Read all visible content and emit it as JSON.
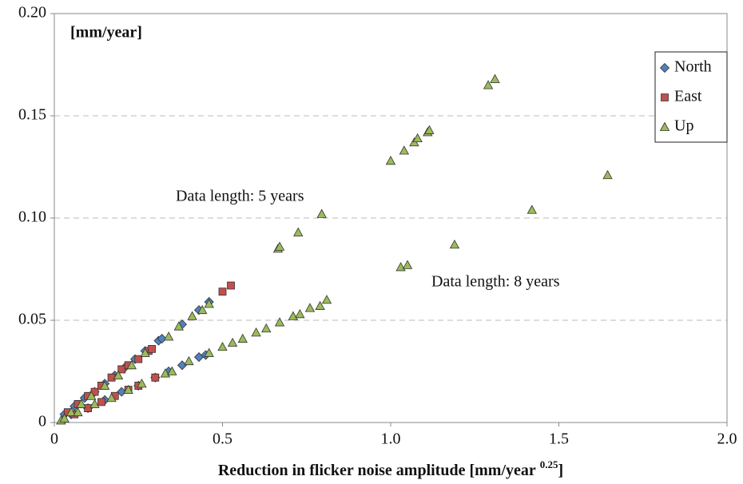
{
  "chart_data": {
    "type": "scatter",
    "y_unit_label": "[mm/year]",
    "x_label": "Reduction in flicker noise amplitude [mm/year",
    "x_label_superscript": "0.25",
    "x_label_end": "]",
    "annotations": [
      "Data length: 5 years",
      "Data length: 8 years"
    ],
    "xlim": [
      0,
      2
    ],
    "ylim": [
      0,
      0.2
    ],
    "xticks": [
      0,
      0.5,
      {
        "value": 1,
        "label": "1.0"
      },
      1.5,
      {
        "value": 2,
        "label": "2.0"
      }
    ],
    "yticks": [
      0,
      0.05,
      {
        "value": 0.1,
        "label": "0.10"
      },
      0.15,
      {
        "value": 0.2,
        "label": "0.20"
      }
    ],
    "grid": true,
    "legend": "top-right",
    "series": [
      {
        "name": "North",
        "color": "#4f81bd",
        "marker": "diamond",
        "x": [
          0.03,
          0.06,
          0.09,
          0.12,
          0.15,
          0.18,
          0.21,
          0.24,
          0.27,
          0.31,
          0.32,
          0.38,
          0.43,
          0.46,
          0.05,
          0.1,
          0.15,
          0.2,
          0.25,
          0.3,
          0.34,
          0.38,
          0.43,
          0.45
        ],
        "values": [
          0.004,
          0.008,
          0.012,
          0.015,
          0.019,
          0.023,
          0.027,
          0.031,
          0.035,
          0.04,
          0.041,
          0.048,
          0.055,
          0.059,
          0.004,
          0.007,
          0.011,
          0.015,
          0.018,
          0.022,
          0.025,
          0.028,
          0.032,
          0.033
        ]
      },
      {
        "name": "East",
        "color": "#c0504d",
        "marker": "square",
        "x": [
          0.04,
          0.07,
          0.1,
          0.12,
          0.14,
          0.17,
          0.2,
          0.22,
          0.25,
          0.28,
          0.29,
          0.5,
          0.525,
          0.06,
          0.1,
          0.14,
          0.18,
          0.22,
          0.25,
          0.3
        ],
        "values": [
          0.005,
          0.009,
          0.013,
          0.015,
          0.018,
          0.022,
          0.026,
          0.028,
          0.031,
          0.035,
          0.036,
          0.064,
          0.067,
          0.004,
          0.007,
          0.01,
          0.013,
          0.016,
          0.018,
          0.022
        ]
      },
      {
        "name": "Up",
        "color": "#9bbb59",
        "marker": "triangle",
        "x": [
          0.02,
          0.05,
          0.08,
          0.11,
          0.15,
          0.19,
          0.23,
          0.27,
          0.34,
          0.37,
          0.41,
          0.44,
          0.46,
          0.665,
          0.67,
          0.725,
          0.795,
          1.0,
          1.04,
          1.07,
          1.08,
          1.11,
          1.115,
          1.29,
          1.31,
          0.03,
          0.07,
          0.12,
          0.17,
          0.22,
          0.26,
          0.33,
          0.35,
          0.4,
          0.46,
          0.5,
          0.53,
          0.56,
          0.6,
          0.63,
          0.67,
          0.71,
          0.73,
          0.76,
          0.79,
          0.81,
          1.03,
          1.05,
          1.19,
          1.42,
          1.645
        ],
        "values": [
          0.001,
          0.005,
          0.009,
          0.013,
          0.018,
          0.023,
          0.028,
          0.034,
          0.042,
          0.047,
          0.052,
          0.055,
          0.058,
          0.085,
          0.086,
          0.093,
          0.102,
          0.128,
          0.133,
          0.137,
          0.139,
          0.142,
          0.143,
          0.165,
          0.168,
          0.002,
          0.005,
          0.009,
          0.012,
          0.016,
          0.019,
          0.024,
          0.025,
          0.03,
          0.034,
          0.037,
          0.039,
          0.041,
          0.044,
          0.046,
          0.049,
          0.052,
          0.053,
          0.056,
          0.057,
          0.06,
          0.076,
          0.077,
          0.087,
          0.104,
          0.121
        ]
      }
    ]
  }
}
